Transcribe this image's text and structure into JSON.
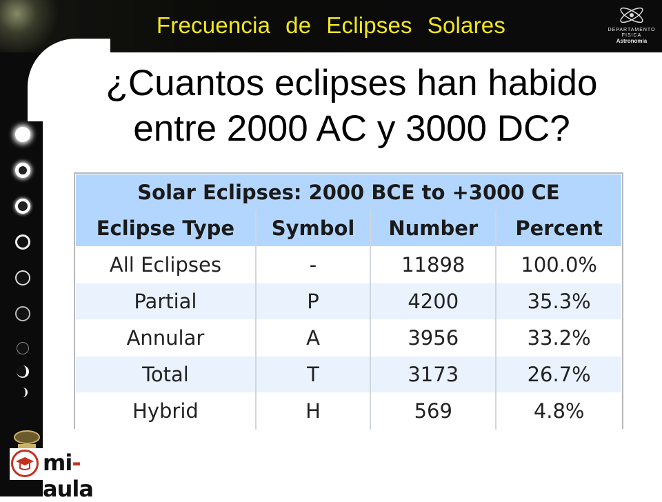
{
  "header": {
    "title_word1": "Frecuencia",
    "title_word2": "de",
    "title_word3": "Eclipses",
    "title_word4": "Solares"
  },
  "logo": {
    "line1": "DEPARTAMENTO",
    "line2": "FISICA",
    "line3": "Astronomía"
  },
  "question": {
    "line1": "¿Cuantos eclipses han habido",
    "line2": "entre 2000 AC y 3000 DC?"
  },
  "table": {
    "title": "Solar Eclipses: 2000 BCE to +3000 CE",
    "columns": [
      "Eclipse Type",
      "Symbol",
      "Number",
      "Percent"
    ],
    "rows": [
      [
        "All Eclipses",
        "-",
        "11898",
        "100.0%"
      ],
      [
        "Partial",
        "P",
        "4200",
        "35.3%"
      ],
      [
        "Annular",
        "A",
        "3956",
        "33.2%"
      ],
      [
        "Total",
        "T",
        "3173",
        "26.7%"
      ],
      [
        "Hybrid",
        "H",
        "569",
        "4.8%"
      ]
    ],
    "colors": {
      "header_bg": "#b3d6ff",
      "alt_row_bg": "#e9f2fd"
    }
  },
  "brand": {
    "mi": "mi",
    "dash": "-",
    "aula": "aula"
  },
  "colors": {
    "title_yellow": "#f2e91a",
    "frame": "#0b0b0b",
    "brand_red": "#c2321e"
  }
}
